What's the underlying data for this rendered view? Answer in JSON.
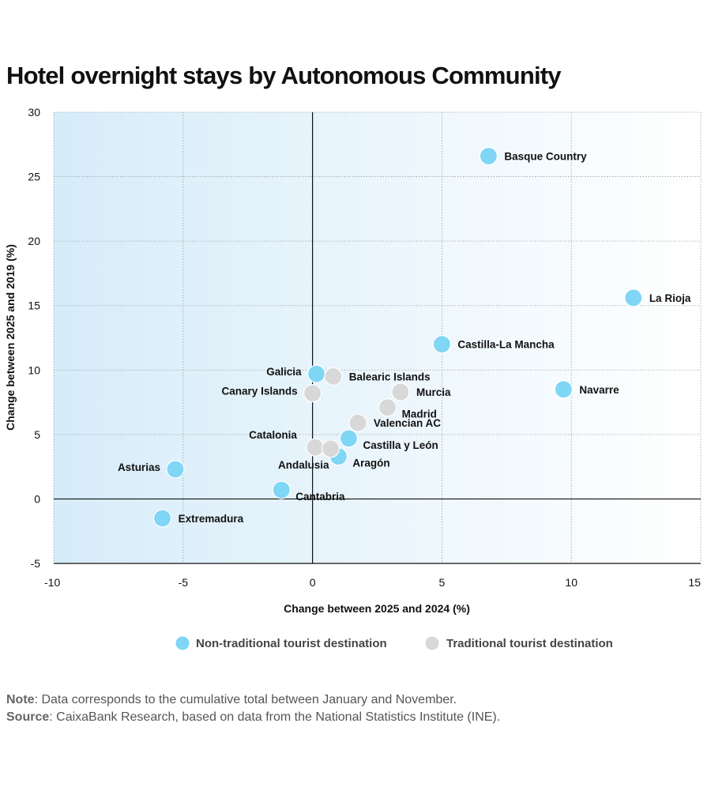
{
  "chart_data": {
    "type": "scatter",
    "title": "Hotel overnight stays by Autonomous Community",
    "xlabel": "Change between 2025 and 2024 (%)",
    "ylabel": "Change between 2025 and 2019 (%)",
    "xlim": [
      -10,
      15
    ],
    "ylim": [
      -5,
      30
    ],
    "xticks": [
      "-10",
      "-5",
      "0",
      "5",
      "10",
      "15"
    ],
    "yticks": [
      "-5",
      "0",
      "5",
      "10",
      "15",
      "20",
      "25",
      "30"
    ],
    "grid": true,
    "legend_position": "bottom",
    "colors": {
      "non_traditional": "#7fd6f5",
      "traditional": "#d8d8d8",
      "axis": "#111111",
      "grid": "#9aa0a6"
    },
    "series": [
      {
        "name": "Non-traditional tourist destination",
        "key": "non_traditional",
        "points": [
          {
            "label": "Basque Country",
            "x": 6.8,
            "y": 26.6,
            "anchor": "right"
          },
          {
            "label": "La Rioja",
            "x": 12.4,
            "y": 15.6,
            "anchor": "right"
          },
          {
            "label": "Castilla-La Mancha",
            "x": 5.0,
            "y": 12.0,
            "anchor": "right"
          },
          {
            "label": "Navarre",
            "x": 9.7,
            "y": 8.5,
            "anchor": "right"
          },
          {
            "label": "Galicia",
            "x": 0.15,
            "y": 9.7,
            "anchor": "left"
          },
          {
            "label": "Castilla y León",
            "x": 1.4,
            "y": 4.7,
            "anchor": "right-below"
          },
          {
            "label": "Aragón",
            "x": 1.0,
            "y": 3.3,
            "anchor": "right-below"
          },
          {
            "label": "Asturias",
            "x": -5.3,
            "y": 2.3,
            "anchor": "left"
          },
          {
            "label": "Cantabria",
            "x": -1.2,
            "y": 0.7,
            "anchor": "right-below"
          },
          {
            "label": "Extremadura",
            "x": -5.8,
            "y": -1.5,
            "anchor": "right"
          }
        ]
      },
      {
        "name": "Traditional tourist destination",
        "key": "traditional",
        "points": [
          {
            "label": "Balearic Islands",
            "x": 0.8,
            "y": 9.5,
            "anchor": "right"
          },
          {
            "label": "Canary Islands",
            "x": 0.0,
            "y": 8.2,
            "anchor": "left"
          },
          {
            "label": "Murcia",
            "x": 3.4,
            "y": 8.3,
            "anchor": "right"
          },
          {
            "label": "Madrid",
            "x": 2.9,
            "y": 7.1,
            "anchor": "right-below"
          },
          {
            "label": "Valencian AC",
            "x": 1.75,
            "y": 5.9,
            "anchor": "right"
          },
          {
            "label": "Catalonia",
            "x": 0.1,
            "y": 4.0,
            "anchor": "left-above"
          },
          {
            "label": "Andalusia",
            "x": 0.7,
            "y": 3.9,
            "anchor": "left-below"
          }
        ]
      }
    ]
  },
  "footnotes": {
    "note_label": "Note",
    "note_text": ": Data corresponds to the cumulative total between January and November.",
    "source_label": "Source",
    "source_text": ": CaixaBank Research, based on data from the National Statistics Institute (INE)."
  }
}
